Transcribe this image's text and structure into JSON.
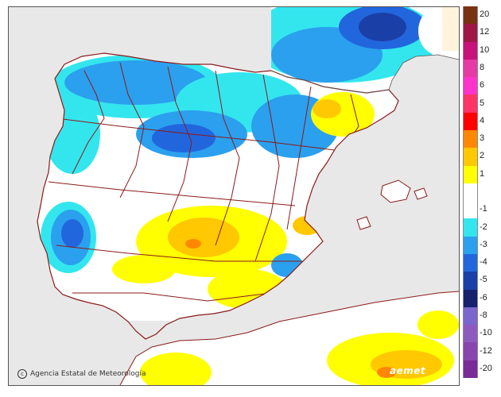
{
  "map": {
    "credit": "Agencia Estatal de Meteorología",
    "brand": "aemet",
    "colors": {
      "sea": "#e8e8e8",
      "land": "#ffffff",
      "border": "#8b1a1a",
      "coast": "#8b1a1a"
    }
  },
  "legend": {
    "items": [
      {
        "label": "20",
        "color": "#7a3310"
      },
      {
        "label": "12",
        "color": "#a01747"
      },
      {
        "label": "10",
        "color": "#c8117a"
      },
      {
        "label": "8",
        "color": "#e63aa6"
      },
      {
        "label": "6",
        "color": "#ff33cc"
      },
      {
        "label": "5",
        "color": "#ff3366"
      },
      {
        "label": "4",
        "color": "#ff0000"
      },
      {
        "label": "3",
        "color": "#ff8800"
      },
      {
        "label": "2",
        "color": "#ffc800"
      },
      {
        "label": "1",
        "color": "#ffff00"
      },
      {
        "label": "",
        "color": "#ffffff"
      },
      {
        "label": "-1",
        "color": "#ffffff"
      },
      {
        "label": "-2",
        "color": "#33e6ee"
      },
      {
        "label": "-3",
        "color": "#2ba0ee"
      },
      {
        "label": "-4",
        "color": "#2266dd"
      },
      {
        "label": "-5",
        "color": "#1a3fa6"
      },
      {
        "label": "-6",
        "color": "#15206e"
      },
      {
        "label": "-8",
        "color": "#7a66cc"
      },
      {
        "label": "-10",
        "color": "#8e5abf"
      },
      {
        "label": "-12",
        "color": "#8a44b0"
      },
      {
        "label": "-20",
        "color": "#7a2a99"
      }
    ]
  }
}
